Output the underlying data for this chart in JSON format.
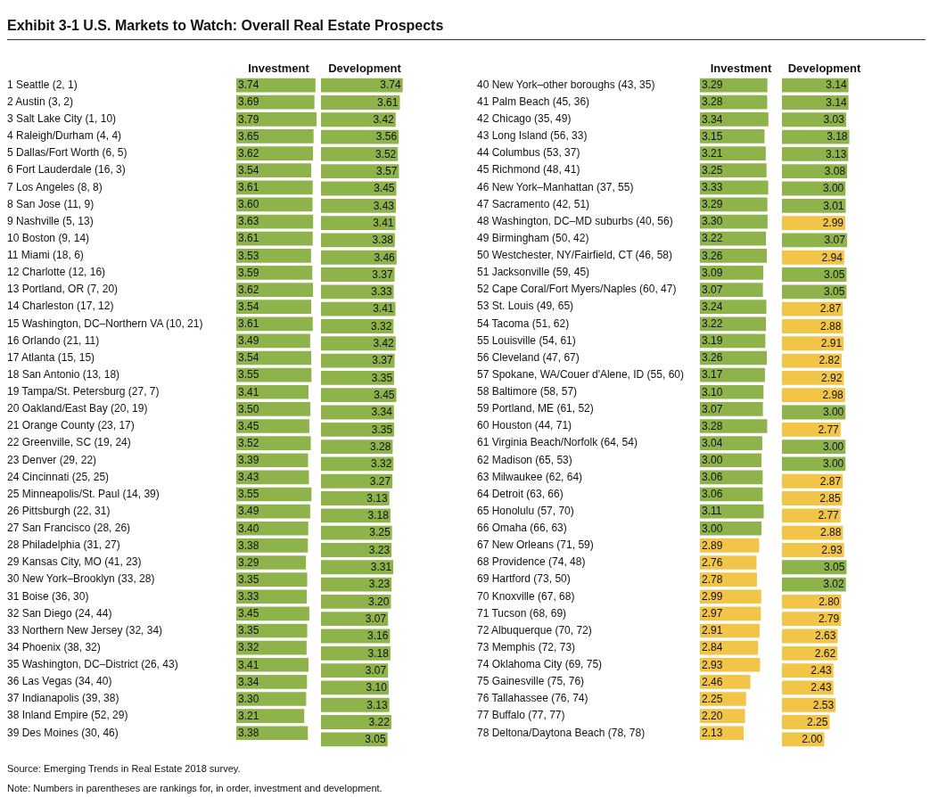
{
  "chart_data": [
    {
      "type": "other",
      "title": "Exhibit 3-1  U.S. Markets to Watch: Overall Real Estate Prospects",
      "annotations": [
        "Source: Emerging Trends in Real Estate 2018 survey.",
        "Note: Numbers in parentheses are rankings for, in order, investment and development."
      ]
    },
    {
      "type": "bar",
      "orientation": "horizontal",
      "title": "Investment",
      "tick_labels": "y",
      "color": "#8fb34b",
      "categories": [
        "1 Seattle (2, 1)",
        "2 Austin (3, 2)",
        "3 Salt Lake City (1, 10)",
        "4 Raleigh/Durham (4, 4)",
        "5 Dallas/Fort Worth (6, 5)",
        "6 Fort Lauderdale (16, 3)",
        "7 Los Angeles (8, 8)",
        "8 San Jose (11, 9)",
        "9 Nashville (5, 13)",
        "10 Boston (9, 14)",
        "11 Miami (18, 6)",
        "12 Charlotte (12, 16)",
        "13 Portland, OR (7, 20)",
        "14 Charleston (17, 12)",
        "15 Washington, DC–Northern VA (10, 21)",
        "16 Orlando (21, 11)",
        "17 Atlanta (15, 15)",
        "18 San Antonio (13, 18)",
        "19 Tampa/St. Petersburg (27, 7)",
        "20 Oakland/East Bay (20, 19)",
        "21 Orange County (23, 17)",
        "22 Greenville, SC (19, 24)",
        "23 Denver (29, 22)",
        "24 Cincinnati (25, 25)",
        "25 Minneapolis/St. Paul (14, 39)",
        "26 Pittsburgh (22, 31)",
        "27 San Francisco (28, 26)",
        "28 Philadelphia (31, 27)",
        "29 Kansas City, MO (41, 23)",
        "30 New York–Brooklyn (33, 28)",
        "31 Boise (36, 30)",
        "32 San Diego (24, 44)",
        "33 Northern New Jersey (32, 34)",
        "34 Phoenix (38, 32)",
        "35 Washington, DC–District (26, 43)",
        "36 Las Vegas (34, 40)",
        "37 Indianapolis (39, 38)",
        "38 Inland Empire (52, 29)",
        "39 Des Moines (30, 46)"
      ],
      "values": [
        3.74,
        3.69,
        3.79,
        3.65,
        3.62,
        3.54,
        3.61,
        3.6,
        3.63,
        3.61,
        3.53,
        3.59,
        3.62,
        3.54,
        3.61,
        3.49,
        3.54,
        3.55,
        3.41,
        3.5,
        3.45,
        3.52,
        3.39,
        3.43,
        3.55,
        3.49,
        3.4,
        3.38,
        3.29,
        3.35,
        3.33,
        3.45,
        3.35,
        3.32,
        3.41,
        3.34,
        3.3,
        3.21,
        3.38
      ],
      "value_labels": [
        "3.74",
        "3.69",
        "3.79",
        "3.65",
        "3.62",
        "3.54",
        "3.61",
        "3.60",
        "3.63",
        "3.61",
        "3.53",
        "3.59",
        "3.62",
        "3.54",
        "3.61",
        "3.49",
        "3.54",
        "3.55",
        "3.41",
        "3.50",
        "3.45",
        "3.52",
        "3.39",
        "3.43",
        "3.55",
        "3.49",
        "3.40",
        "3.38",
        "3.29",
        "3.35",
        "3.33",
        "3.45",
        "3.35",
        "3.32",
        "3.41",
        "3.34",
        "3.30",
        "3.21",
        "3.38"
      ]
    },
    {
      "type": "bar",
      "orientation": "horizontal",
      "title": "Development",
      "tick_labels": false,
      "color": "#8fb34b",
      "categories": [
        null,
        null,
        null,
        null,
        null,
        null,
        null,
        null,
        null,
        null,
        null,
        null,
        null,
        null,
        null,
        null,
        null,
        null,
        null,
        null,
        null,
        null,
        null,
        null,
        null,
        null,
        null,
        null,
        null,
        null,
        null,
        null,
        null,
        null,
        null,
        null,
        null,
        null,
        null
      ],
      "values": [
        3.74,
        3.61,
        3.42,
        3.56,
        3.52,
        3.57,
        3.45,
        3.43,
        3.41,
        3.38,
        3.46,
        3.37,
        3.33,
        3.41,
        3.32,
        3.42,
        3.37,
        3.35,
        3.45,
        3.34,
        3.35,
        3.28,
        3.32,
        3.27,
        3.13,
        3.18,
        3.25,
        3.23,
        3.31,
        3.23,
        3.2,
        3.07,
        3.16,
        3.18,
        3.07,
        3.1,
        3.13,
        3.22,
        3.05
      ],
      "value_labels": [
        "3.74",
        "3.61",
        "3.42",
        "3.56",
        "3.52",
        "3.57",
        "3.45",
        "3.43",
        "3.41",
        "3.38",
        "3.46",
        "3.37",
        "3.33",
        "3.41",
        "3.32",
        "3.42",
        "3.37",
        "3.35",
        "3.45",
        "3.34",
        "3.35",
        "3.28",
        "3.32",
        "3.27",
        "3.13",
        "3.18",
        "3.25",
        "3.23",
        "3.31",
        "3.23",
        "3.20",
        "3.07",
        "3.16",
        "3.18",
        "3.07",
        "3.10",
        "3.13",
        "3.22",
        "3.05"
      ]
    },
    {
      "type": "bar",
      "orientation": "horizontal",
      "title": "Investment",
      "tick_labels": "y",
      "categories": [
        "40 New York–other boroughs (43, 35)",
        "41 Palm Beach (45, 36)",
        "42 Chicago (35, 49)",
        "43 Long Island (56, 33)",
        "44 Columbus (53, 37)",
        "45 Richmond (48, 41)",
        "46 New York–Manhattan (37, 55)",
        "47 Sacramento (42, 51)",
        "48 Washington, DC–MD suburbs (40, 56)",
        "49 Birmingham (50, 42)",
        "50 Westchester, NY/Fairfield, CT (46, 58)",
        "51 Jacksonville (59, 45)",
        "52 Cape Coral/Fort Myers/Naples (60, 47)",
        "53 St. Louis (49, 65)",
        "54 Tacoma (51, 62)",
        "55 Louisville (54, 61)",
        "56 Cleveland (47, 67)",
        "57 Spokane, WA/Couer d'Alene, ID (55, 60)",
        "58 Baltimore (58, 57)",
        "59 Portland, ME (61, 52)",
        "60 Houston (44, 71)",
        "61 Virginia Beach/Norfolk (64, 54)",
        "62 Madison (65, 53)",
        "63 Milwaukee (62, 64)",
        "64 Detroit (63, 66)",
        "65 Honolulu (57, 70)",
        "66 Omaha (66, 63)",
        "67 New Orleans (71, 59)",
        "68 Providence (74, 48)",
        "69 Hartford (73, 50)",
        "70 Knoxville (67, 68)",
        "71 Tucson (68, 69)",
        "72 Albuquerque (70, 72)",
        "73 Memphis (72, 73)",
        "74 Oklahoma City (69, 75)",
        "75 Gainesville (75, 76)",
        "76 Tallahassee (76, 74)",
        "77 Buffalo (77, 77)",
        "78 Deltona/Daytona Beach (78, 78)"
      ],
      "values": [
        3.29,
        3.28,
        3.34,
        3.15,
        3.21,
        3.25,
        3.33,
        3.29,
        3.3,
        3.22,
        3.26,
        3.09,
        3.07,
        3.24,
        3.22,
        3.19,
        3.26,
        3.17,
        3.1,
        3.07,
        3.28,
        3.04,
        3.0,
        3.06,
        3.06,
        3.11,
        3.0,
        2.89,
        2.76,
        2.78,
        2.99,
        2.97,
        2.91,
        2.84,
        2.93,
        2.46,
        2.25,
        2.2,
        2.13
      ],
      "value_labels": [
        "3.29",
        "3.28",
        "3.34",
        "3.15",
        "3.21",
        "3.25",
        "3.33",
        "3.29",
        "3.30",
        "3.22",
        "3.26",
        "3.09",
        "3.07",
        "3.24",
        "3.22",
        "3.19",
        "3.26",
        "3.17",
        "3.10",
        "3.07",
        "3.28",
        "3.04",
        "3.00",
        "3.06",
        "3.06",
        "3.11",
        "3.00",
        "2.89",
        "2.76",
        "2.78",
        "2.99",
        "2.97",
        "2.91",
        "2.84",
        "2.93",
        "2.46",
        "2.25",
        "2.20",
        "2.13"
      ],
      "colors": [
        "#8fb34b",
        "#8fb34b",
        "#8fb34b",
        "#8fb34b",
        "#8fb34b",
        "#8fb34b",
        "#8fb34b",
        "#8fb34b",
        "#8fb34b",
        "#8fb34b",
        "#8fb34b",
        "#8fb34b",
        "#8fb34b",
        "#8fb34b",
        "#8fb34b",
        "#8fb34b",
        "#8fb34b",
        "#8fb34b",
        "#8fb34b",
        "#8fb34b",
        "#8fb34b",
        "#8fb34b",
        "#8fb34b",
        "#8fb34b",
        "#8fb34b",
        "#8fb34b",
        "#8fb34b",
        "#f2c548",
        "#f2c548",
        "#f2c548",
        "#f2c548",
        "#f2c548",
        "#f2c548",
        "#f2c548",
        "#f2c548",
        "#f2c548",
        "#f2c548",
        "#f2c548",
        "#f2c548"
      ]
    },
    {
      "type": "bar",
      "orientation": "horizontal",
      "title": "Development",
      "tick_labels": false,
      "categories": [
        null,
        null,
        null,
        null,
        null,
        null,
        null,
        null,
        null,
        null,
        null,
        null,
        null,
        null,
        null,
        null,
        null,
        null,
        null,
        null,
        null,
        null,
        null,
        null,
        null,
        null,
        null,
        null,
        null,
        null,
        null,
        null,
        null,
        null,
        null,
        null,
        null,
        null,
        null
      ],
      "values": [
        3.14,
        3.14,
        3.03,
        3.18,
        3.13,
        3.08,
        3.0,
        3.01,
        2.99,
        3.07,
        2.94,
        3.05,
        3.05,
        2.87,
        2.88,
        2.91,
        2.82,
        2.92,
        2.98,
        3.0,
        2.77,
        3.0,
        3.0,
        2.87,
        2.85,
        2.77,
        2.88,
        2.93,
        3.05,
        3.02,
        2.8,
        2.79,
        2.63,
        2.62,
        2.43,
        2.43,
        2.53,
        2.25,
        2.0
      ],
      "value_labels": [
        "3.14",
        "3.14",
        "3.03",
        "3.18",
        "3.13",
        "3.08",
        "3.00",
        "3.01",
        "2.99",
        "3.07",
        "2.94",
        "3.05",
        "3.05",
        "2.87",
        "2.88",
        "2.91",
        "2.82",
        "2.92",
        "2.98",
        "3.00",
        "2.77",
        "3.00",
        "3.00",
        "2.87",
        "2.85",
        "2.77",
        "2.88",
        "2.93",
        "3.05",
        "3.02",
        "2.80",
        "2.79",
        "2.63",
        "2.62",
        "2.43",
        "2.43",
        "2.53",
        "2.25",
        "2.00"
      ],
      "colors": [
        "#8fb34b",
        "#8fb34b",
        "#8fb34b",
        "#8fb34b",
        "#8fb34b",
        "#8fb34b",
        "#8fb34b",
        "#8fb34b",
        "#f2c548",
        "#8fb34b",
        "#f2c548",
        "#8fb34b",
        "#8fb34b",
        "#f2c548",
        "#f2c548",
        "#f2c548",
        "#f2c548",
        "#f2c548",
        "#f2c548",
        "#8fb34b",
        "#f2c548",
        "#8fb34b",
        "#8fb34b",
        "#f2c548",
        "#f2c548",
        "#f2c548",
        "#f2c548",
        "#f2c548",
        "#8fb34b",
        "#8fb34b",
        "#f2c548",
        "#f2c548",
        "#f2c548",
        "#f2c548",
        "#f2c548",
        "#f2c548",
        "#f2c548",
        "#f2c548",
        "#f2c548"
      ]
    }
  ]
}
